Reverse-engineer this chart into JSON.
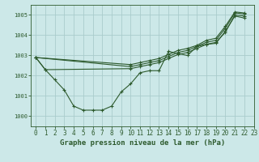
{
  "title": "Graphe pression niveau de la mer (hPa)",
  "background_color": "#cce8e8",
  "grid_color": "#aacccc",
  "line_color": "#2d5a2d",
  "xlim": [
    -0.5,
    23
  ],
  "ylim": [
    999.5,
    1005.5
  ],
  "yticks": [
    1000,
    1001,
    1002,
    1003,
    1004,
    1005
  ],
  "xticks": [
    0,
    1,
    2,
    3,
    4,
    5,
    6,
    7,
    8,
    9,
    10,
    11,
    12,
    13,
    14,
    15,
    16,
    17,
    18,
    19,
    20,
    21,
    22,
    23
  ],
  "series": [
    [
      1002.9,
      1002.3,
      1001.8,
      1001.3,
      1000.5,
      1000.3,
      1000.3,
      1000.3,
      1000.5,
      1001.2,
      1001.6,
      1002.15,
      1002.25,
      1002.25,
      1003.2,
      1003.1,
      1003.0,
      1003.45,
      1003.55,
      1003.6,
      1004.2,
      1004.95,
      1004.85,
      null
    ],
    [
      1002.9,
      1002.3,
      null,
      null,
      null,
      null,
      null,
      null,
      null,
      null,
      1002.35,
      1002.45,
      1002.55,
      1002.65,
      1002.85,
      1003.05,
      1003.15,
      1003.35,
      1003.55,
      1003.65,
      1004.15,
      1005.0,
      1004.95,
      null
    ],
    [
      1002.9,
      null,
      null,
      null,
      null,
      null,
      null,
      null,
      null,
      null,
      1002.45,
      1002.55,
      1002.65,
      1002.75,
      1002.95,
      1003.15,
      1003.25,
      1003.45,
      1003.65,
      1003.75,
      1004.35,
      1005.1,
      1005.05,
      null
    ],
    [
      1002.9,
      null,
      null,
      null,
      null,
      null,
      null,
      null,
      null,
      null,
      1002.55,
      1002.65,
      1002.75,
      1002.85,
      1003.05,
      1003.25,
      1003.35,
      1003.5,
      1003.75,
      1003.85,
      1004.45,
      1005.15,
      1005.1,
      null
    ]
  ],
  "marker": "+",
  "markersize": 3,
  "linewidth": 0.8,
  "title_fontsize": 6.5,
  "tick_fontsize": 5,
  "xlabel_fontsize": 5.5
}
